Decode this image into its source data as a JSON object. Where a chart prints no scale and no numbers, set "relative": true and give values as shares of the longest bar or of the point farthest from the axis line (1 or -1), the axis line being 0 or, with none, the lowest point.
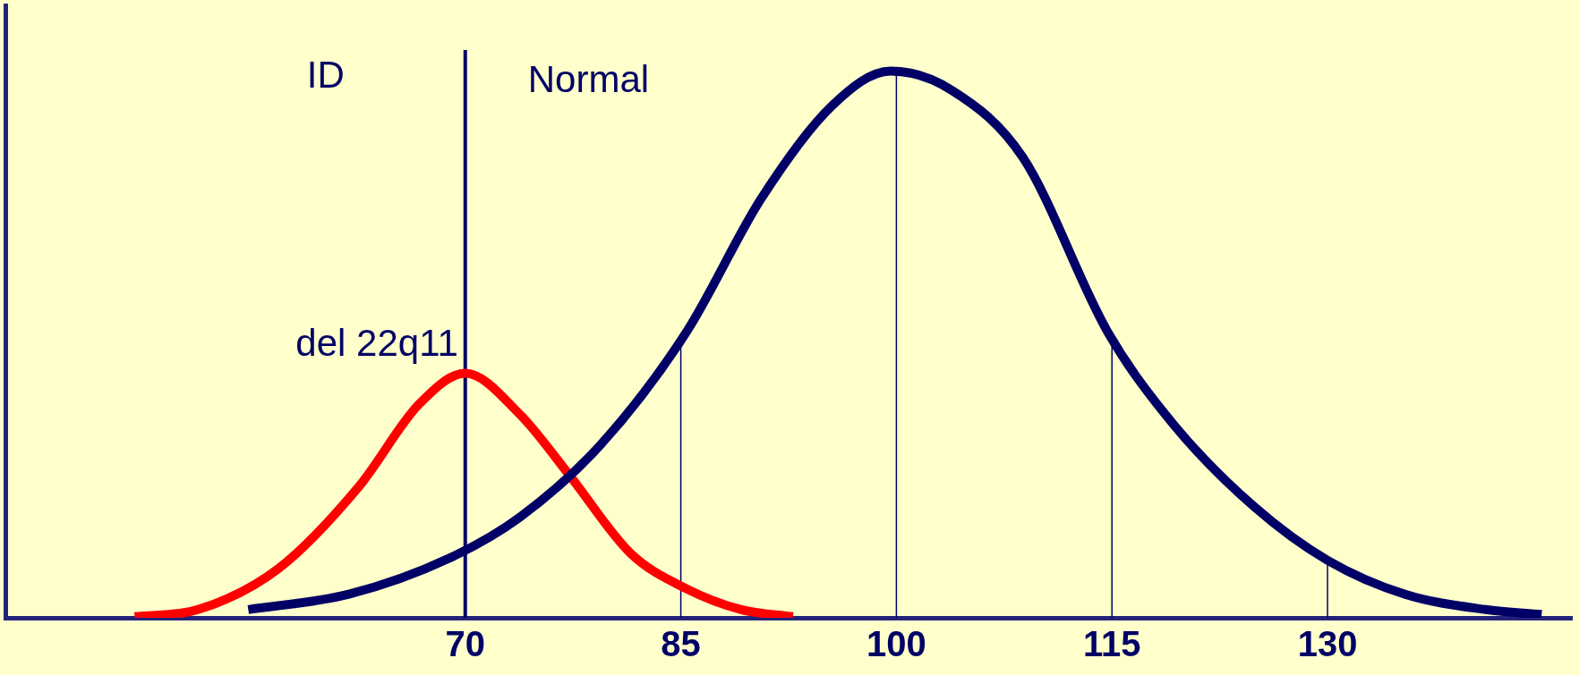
{
  "chart_data": {
    "type": "line",
    "relative": true,
    "xlim": [
      38,
      147
    ],
    "xticks": [
      70,
      85,
      100,
      115,
      130
    ],
    "grid": false,
    "legend": false,
    "marker": "none",
    "line_style": "solid",
    "series": [
      {
        "color": "#000066",
        "x": [
          54.9,
          61.9,
          68.9,
          73.8,
          79.4,
          85.4,
          90.6,
          95.5,
          99.6,
          103.9,
          108.8,
          114.7,
          119.3,
          124.9,
          130,
          135.4,
          141,
          144.9
        ],
        "values": [
          0.015,
          0.043,
          0.109,
          0.184,
          0.316,
          0.523,
          0.767,
          0.936,
          1,
          0.964,
          0.842,
          0.523,
          0.353,
          0.203,
          0.105,
          0.043,
          0.015,
          0.006
        ]
      },
      {
        "color": "#ff0000",
        "x": [
          47,
          51.4,
          57,
          62.6,
          66.8,
          70,
          73.8,
          77.3,
          81.5,
          85.4,
          89.2,
          92.8
        ],
        "values": [
          0.002,
          0.015,
          0.09,
          0.24,
          0.391,
          0.447,
          0.372,
          0.259,
          0.118,
          0.053,
          0.015,
          0.002
        ]
      }
    ],
    "ref_lines": [
      {
        "axis": "x",
        "value": 70,
        "color": "#000066"
      },
      {
        "axis": "x",
        "value": 85,
        "color": "#000066"
      },
      {
        "axis": "x",
        "value": 100,
        "color": "#000066"
      },
      {
        "axis": "x",
        "value": 115,
        "color": "#000066"
      },
      {
        "axis": "x",
        "value": 130,
        "color": "#000066"
      }
    ],
    "annotations": [
      "ID",
      "Normal",
      {
        "text": "del 22q11",
        "x": 70,
        "y": 0.447
      }
    ]
  }
}
